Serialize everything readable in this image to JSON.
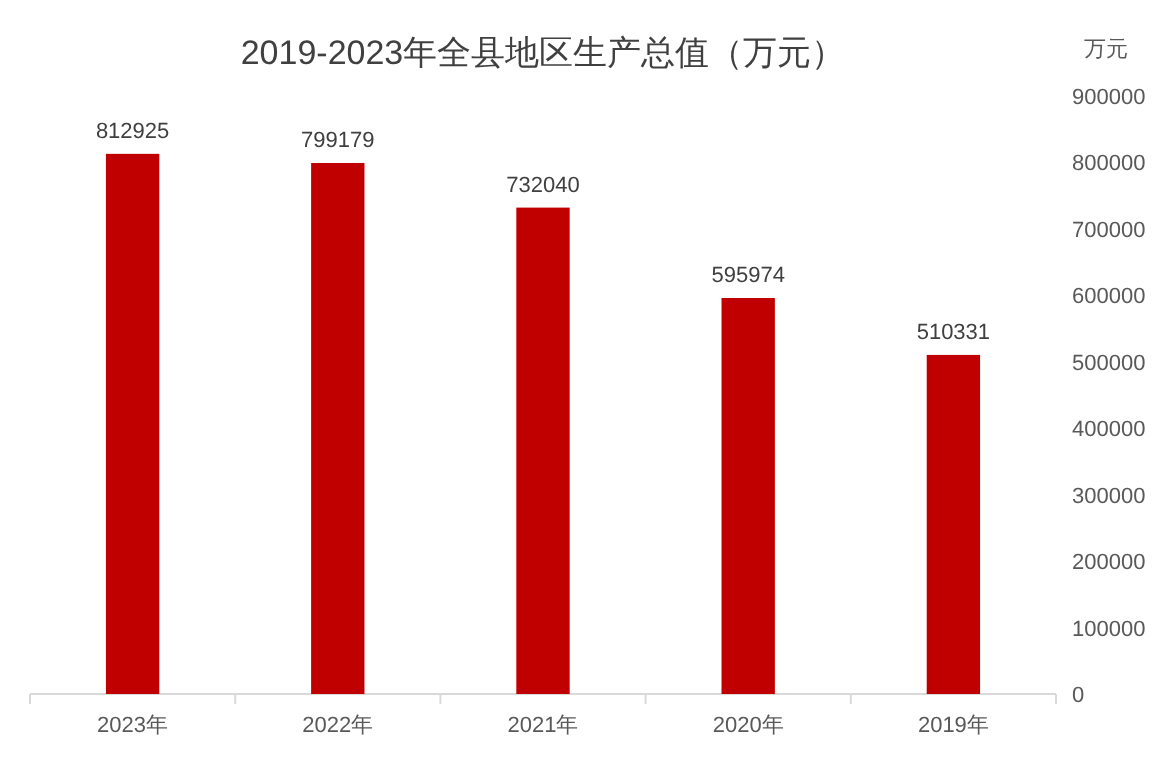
{
  "chart_data": {
    "type": "bar",
    "title": "2019-2023年全县地区生产总值（万元）",
    "ylabel": "万元",
    "categories": [
      "2023年",
      "2022年",
      "2021年",
      "2020年",
      "2019年"
    ],
    "values": [
      812925,
      799179,
      732040,
      595974,
      510331
    ],
    "color": "#c00000",
    "ylim": [
      0,
      900000
    ],
    "yticks": [
      0,
      100000,
      200000,
      300000,
      400000,
      500000,
      600000,
      700000,
      800000,
      900000
    ],
    "data_labels": true,
    "grid": false
  }
}
